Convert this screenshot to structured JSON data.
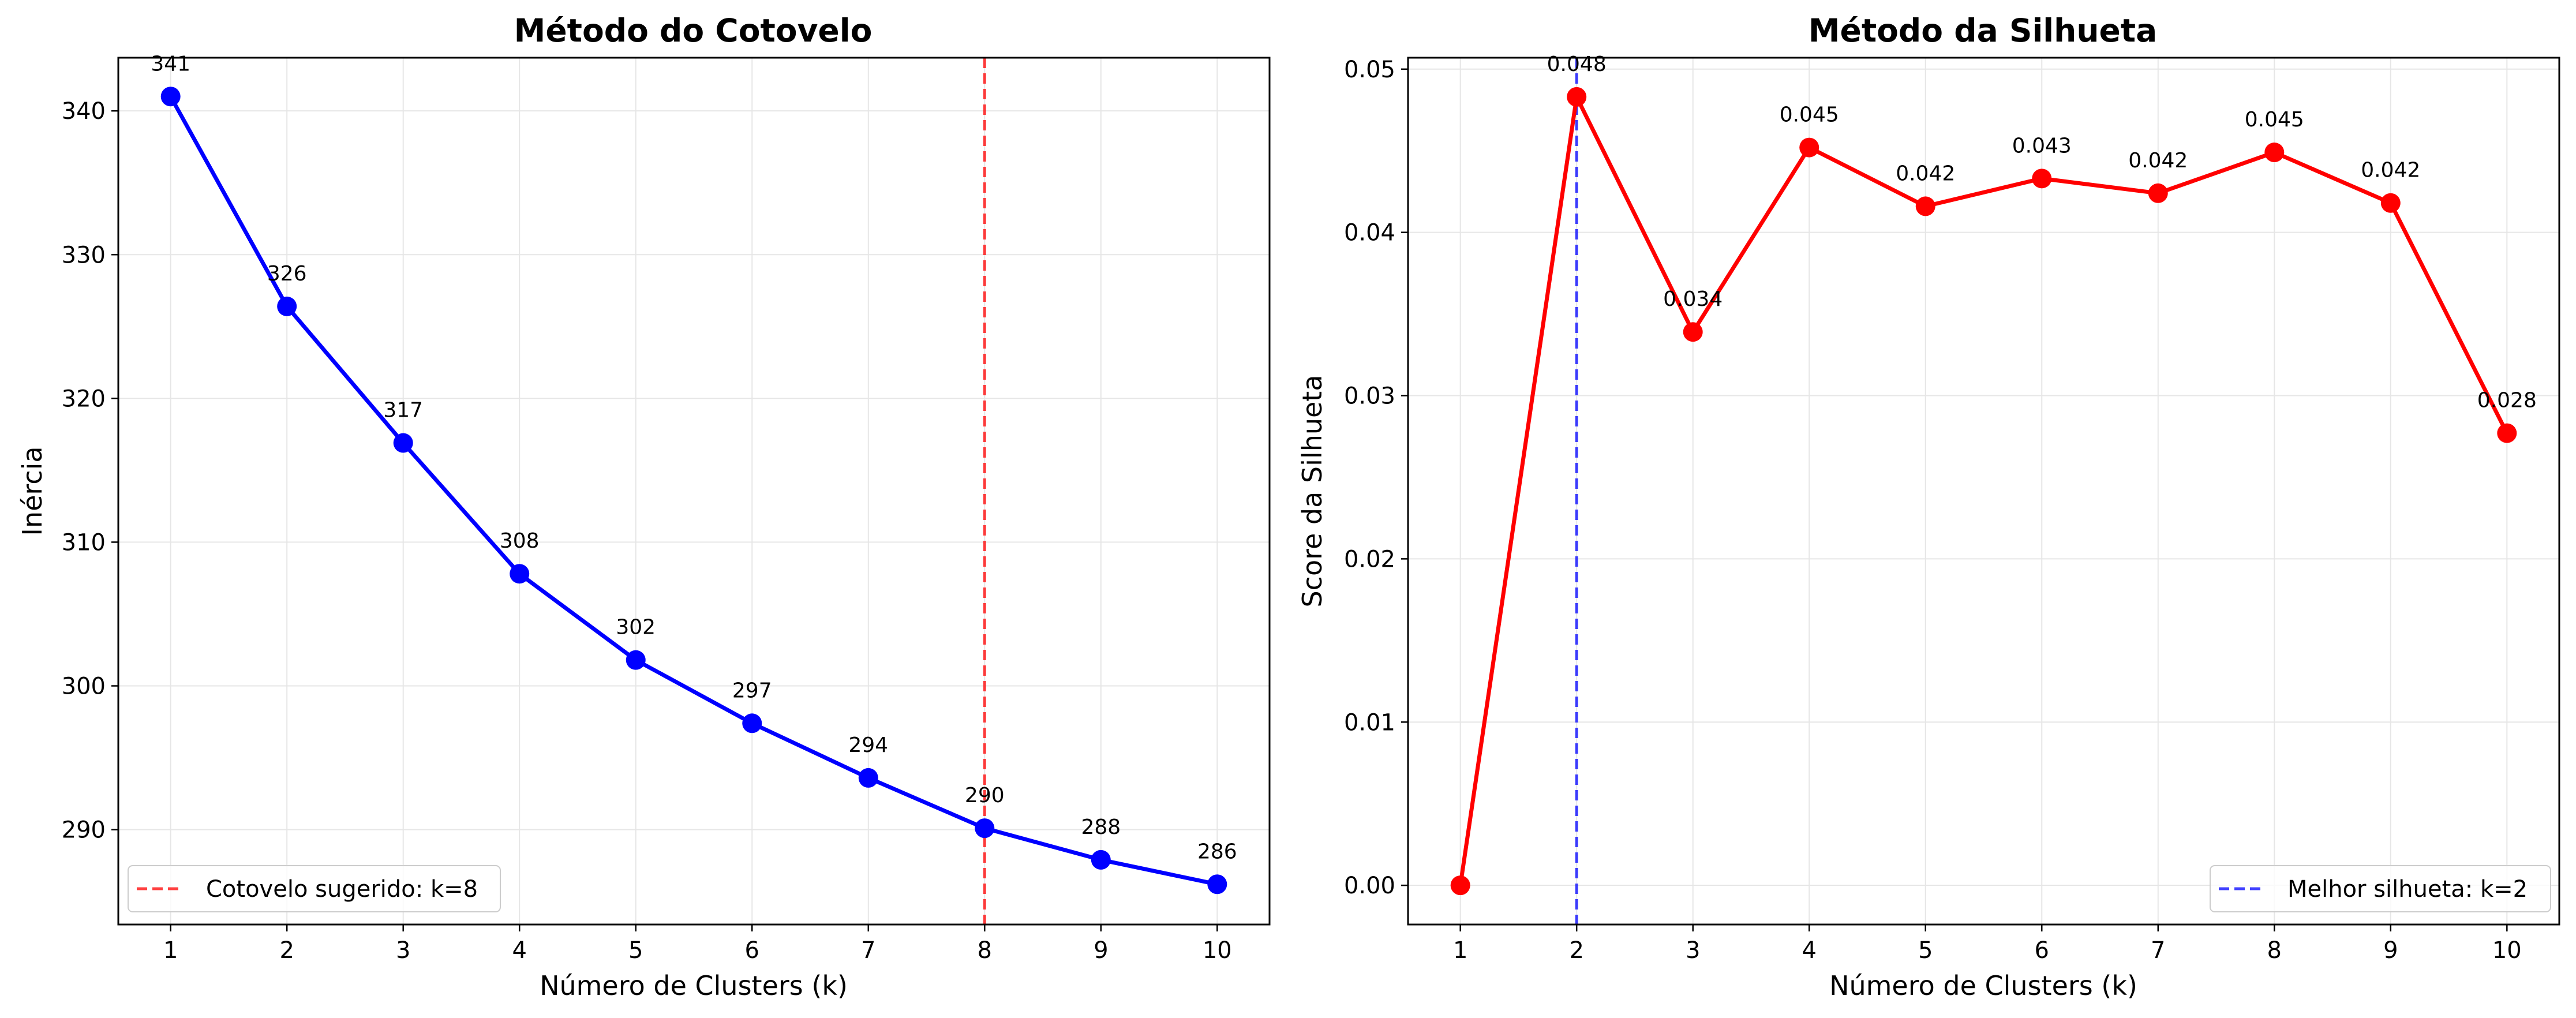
{
  "chart_data": [
    {
      "type": "line",
      "title": "Método do Cotovelo",
      "xlabel": "Número de Clusters (k)",
      "ylabel": "Inércia",
      "x": [
        1,
        2,
        3,
        4,
        5,
        6,
        7,
        8,
        9,
        10
      ],
      "x_ticks": [
        "1",
        "2",
        "3",
        "4",
        "5",
        "6",
        "7",
        "8",
        "9",
        "10"
      ],
      "y_ticks": [
        "290",
        "300",
        "310",
        "320",
        "330",
        "340"
      ],
      "xlim": [
        0.55,
        10.45
      ],
      "ylim": [
        283.4,
        343.7
      ],
      "series": [
        {
          "values": [
            341.0,
            326.4,
            316.9,
            307.8,
            301.8,
            297.4,
            293.6,
            290.1,
            287.9,
            286.2
          ],
          "labels": [
            "341",
            "326",
            "317",
            "308",
            "302",
            "297",
            "294",
            "290",
            "288",
            "286"
          ],
          "color": "#0000ff"
        }
      ],
      "reference_line": {
        "x": 8,
        "color": "#ff0000",
        "style": "dashed"
      },
      "legend": {
        "position": "lower-left",
        "entries": [
          "Cotovelo sugerido: k=8"
        ]
      },
      "grid": true
    },
    {
      "type": "line",
      "title": "Método da Silhueta",
      "xlabel": "Número de Clusters (k)",
      "ylabel": "Score da Silhueta",
      "x": [
        1,
        2,
        3,
        4,
        5,
        6,
        7,
        8,
        9,
        10
      ],
      "x_ticks": [
        "1",
        "2",
        "3",
        "4",
        "5",
        "6",
        "7",
        "8",
        "9",
        "10"
      ],
      "y_ticks": [
        "0.00",
        "0.01",
        "0.02",
        "0.03",
        "0.04",
        "0.05"
      ],
      "xlim": [
        0.55,
        10.45
      ],
      "ylim": [
        -0.0024,
        0.0507
      ],
      "series": [
        {
          "values": [
            0.0,
            0.0483,
            0.0339,
            0.0452,
            0.0416,
            0.0433,
            0.0424,
            0.0449,
            0.0418,
            0.0277
          ],
          "labels": [
            "",
            "0.048",
            "0.034",
            "0.045",
            "0.042",
            "0.043",
            "0.042",
            "0.045",
            "0.042",
            "0.028"
          ],
          "color": "#ff0000"
        }
      ],
      "reference_line": {
        "x": 2,
        "color": "#0000ff",
        "style": "dashed"
      },
      "legend": {
        "position": "lower-right",
        "entries": [
          "Melhor silhueta: k=2"
        ]
      },
      "grid": true
    }
  ]
}
